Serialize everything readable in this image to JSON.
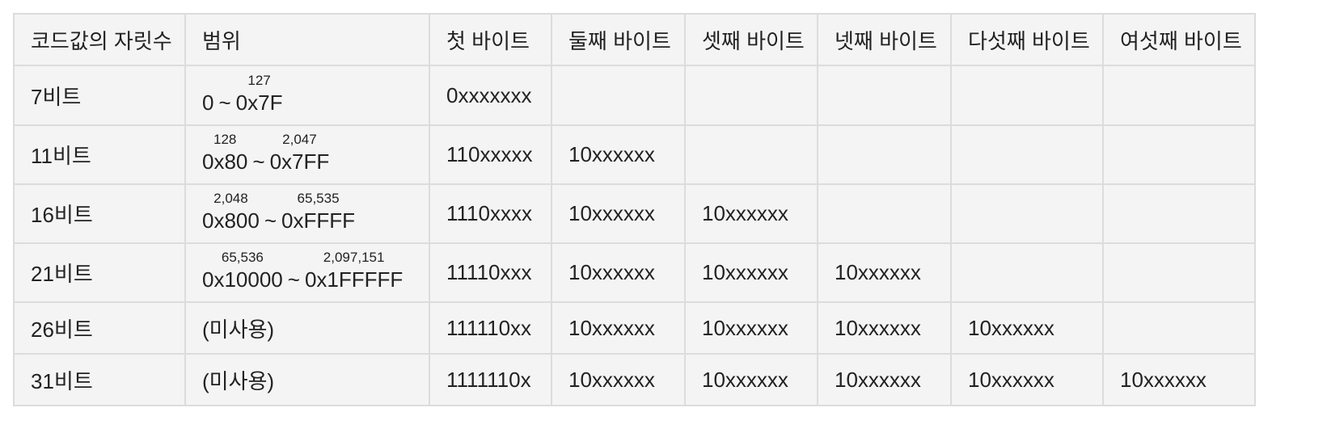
{
  "headers": [
    "코드값의 자릿수",
    "범위",
    "첫 바이트",
    "둘째 바이트",
    "셋째 바이트",
    "넷째 바이트",
    "다섯째 바이트",
    "여섯째 바이트"
  ],
  "rows": [
    {
      "bits": "7비트",
      "range": {
        "from": "0",
        "from_dec": "",
        "to": "0x7F",
        "to_dec": "127"
      },
      "bytes": [
        "0xxxxxxx",
        "",
        "",
        "",
        "",
        ""
      ]
    },
    {
      "bits": "11비트",
      "range": {
        "from": "0x80",
        "from_dec": "128",
        "to": "0x7FF",
        "to_dec": "2,047"
      },
      "bytes": [
        "110xxxxx",
        "10xxxxxx",
        "",
        "",
        "",
        ""
      ]
    },
    {
      "bits": "16비트",
      "range": {
        "from": "0x800",
        "from_dec": "2,048",
        "to": "0xFFFF",
        "to_dec": "65,535"
      },
      "bytes": [
        "1110xxxx",
        "10xxxxxx",
        "10xxxxxx",
        "",
        "",
        ""
      ]
    },
    {
      "bits": "21비트",
      "range": {
        "from": "0x10000",
        "from_dec": "65,536",
        "to": "0x1FFFFF",
        "to_dec": "2,097,151"
      },
      "bytes": [
        "11110xxx",
        "10xxxxxx",
        "10xxxxxx",
        "10xxxxxx",
        "",
        ""
      ]
    },
    {
      "bits": "26비트",
      "range_text": "(미사용)",
      "bytes": [
        "111110xx",
        "10xxxxxx",
        "10xxxxxx",
        "10xxxxxx",
        "10xxxxxx",
        ""
      ]
    },
    {
      "bits": "31비트",
      "range_text": "(미사용)",
      "bytes": [
        "1111110x",
        "10xxxxxx",
        "10xxxxxx",
        "10xxxxxx",
        "10xxxxxx",
        "10xxxxxx"
      ]
    }
  ],
  "tilde": "~"
}
